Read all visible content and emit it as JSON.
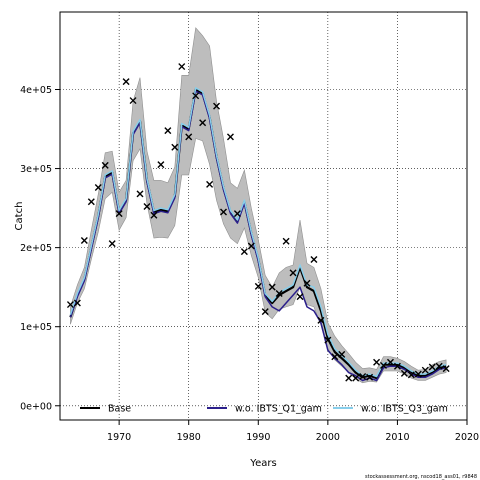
{
  "chart_data": {
    "type": "line",
    "xlabel": "Years",
    "ylabel": "Catch",
    "xlim": [
      1961.5,
      2020
    ],
    "ylim": [
      -18000,
      498000
    ],
    "x_ticks": [
      1970,
      1980,
      1990,
      2000,
      2010,
      2020
    ],
    "y_ticks": [
      0,
      100000,
      200000,
      300000,
      400000
    ],
    "y_tick_labels": [
      "0e+00",
      "1e+05",
      "2e+05",
      "3e+05",
      "4e+05"
    ],
    "grid": true,
    "legend_placement": "bottom",
    "footnote": "stockassessment.org, nscod18_ass01, r9848",
    "x": [
      1963,
      1964,
      1965,
      1966,
      1967,
      1968,
      1969,
      1970,
      1971,
      1972,
      1973,
      1974,
      1975,
      1976,
      1977,
      1978,
      1979,
      1980,
      1981,
      1982,
      1983,
      1984,
      1985,
      1986,
      1987,
      1988,
      1989,
      1990,
      1991,
      1992,
      1993,
      1994,
      1995,
      1996,
      1997,
      1998,
      1999,
      2000,
      2001,
      2002,
      2003,
      2004,
      2005,
      2006,
      2007,
      2008,
      2009,
      2010,
      2011,
      2012,
      2013,
      2014,
      2015,
      2016,
      2017
    ],
    "series": [
      {
        "name": "Base",
        "color": "#000000",
        "values": [
          112000,
          140000,
          160000,
          200000,
          240000,
          290000,
          295000,
          245000,
          260000,
          345000,
          360000,
          285000,
          245000,
          248000,
          246000,
          265000,
          355000,
          350000,
          400000,
          395000,
          365000,
          315000,
          275000,
          245000,
          233000,
          258000,
          218000,
          185000,
          140000,
          130000,
          140000,
          145000,
          150000,
          175000,
          150000,
          145000,
          120000,
          85000,
          68000,
          60000,
          52000,
          42000,
          36000,
          38000,
          35000,
          52000,
          52000,
          52000,
          48000,
          42000,
          38000,
          38000,
          42000,
          48000,
          50000
        ]
      },
      {
        "name": "w.o. IBTS_Q1_gam",
        "color": "#2b1f8c",
        "values": [
          112000,
          138000,
          158000,
          198000,
          238000,
          288000,
          293000,
          243000,
          258000,
          343000,
          358000,
          283000,
          243000,
          246000,
          244000,
          263000,
          353000,
          348000,
          398000,
          393000,
          363000,
          313000,
          273000,
          243000,
          231000,
          256000,
          216000,
          183000,
          138000,
          125000,
          120000,
          130000,
          140000,
          150000,
          125000,
          120000,
          105000,
          70000,
          60000,
          52000,
          42000,
          38000,
          32000,
          35000,
          32000,
          48000,
          50000,
          50000,
          46000,
          40000,
          36000,
          36000,
          40000,
          46000,
          48000
        ]
      },
      {
        "name": "w.o. IBTS_Q3_gam",
        "color": "#87ceeb",
        "values": [
          115000,
          142000,
          162000,
          202000,
          242000,
          292000,
          297000,
          247000,
          262000,
          347000,
          362000,
          287000,
          247000,
          250000,
          248000,
          267000,
          357000,
          352000,
          402000,
          397000,
          367000,
          317000,
          277000,
          247000,
          235000,
          260000,
          220000,
          187000,
          142000,
          132000,
          143000,
          148000,
          153000,
          178000,
          153000,
          150000,
          125000,
          90000,
          72000,
          64000,
          55000,
          45000,
          38000,
          40000,
          37000,
          54000,
          54000,
          54000,
          50000,
          44000,
          40000,
          40000,
          44000,
          50000,
          52000
        ]
      }
    ],
    "band": {
      "lower": [
        103000,
        130000,
        148000,
        185000,
        220000,
        262000,
        270000,
        222000,
        238000,
        310000,
        325000,
        255000,
        212000,
        213000,
        212000,
        228000,
        292000,
        292000,
        338000,
        335000,
        305000,
        260000,
        230000,
        212000,
        205000,
        225000,
        190000,
        162000,
        118000,
        110000,
        122000,
        125000,
        128000,
        150000,
        128000,
        125000,
        102000,
        72000,
        58000,
        50000,
        42000,
        34000,
        29000,
        31000,
        30000,
        44000,
        44000,
        44000,
        40000,
        35000,
        32000,
        32000,
        36000,
        40000,
        42000
      ],
      "upper": [
        125000,
        153000,
        175000,
        222000,
        268000,
        320000,
        322000,
        270000,
        285000,
        385000,
        415000,
        322000,
        285000,
        285000,
        282000,
        302000,
        418000,
        418000,
        478000,
        468000,
        455000,
        385000,
        338000,
        282000,
        275000,
        298000,
        250000,
        210000,
        165000,
        150000,
        168000,
        175000,
        178000,
        235000,
        180000,
        175000,
        148000,
        105000,
        88000,
        76000,
        66000,
        55000,
        47000,
        48000,
        46000,
        62000,
        62000,
        60000,
        56000,
        50000,
        45000,
        46000,
        52000,
        56000,
        58000
      ]
    },
    "observations": {
      "x": [
        1963,
        1964,
        1965,
        1966,
        1967,
        1968,
        1969,
        1970,
        1971,
        1972,
        1973,
        1974,
        1975,
        1976,
        1977,
        1978,
        1979,
        1980,
        1981,
        1982,
        1983,
        1984,
        1985,
        1986,
        1987,
        1988,
        1989,
        1990,
        1991,
        1992,
        1993,
        1994,
        1995,
        1996,
        1997,
        1998,
        1999,
        2000,
        2001,
        2002,
        2003,
        2004,
        2005,
        2006,
        2007,
        2008,
        2009,
        2010,
        2011,
        2012,
        2013,
        2014,
        2015,
        2016,
        2017
      ],
      "y": [
        128000,
        130000,
        209000,
        258000,
        276000,
        304000,
        205000,
        243000,
        410000,
        386000,
        268000,
        252000,
        241000,
        305000,
        348000,
        327000,
        429000,
        340000,
        392000,
        358000,
        280000,
        379000,
        245000,
        340000,
        243000,
        195000,
        202000,
        151000,
        119000,
        150000,
        142000,
        208000,
        168000,
        138000,
        155000,
        185000,
        108000,
        83000,
        62000,
        65000,
        35000,
        35000,
        37000,
        36000,
        55000,
        51000,
        55000,
        50000,
        41000,
        39000,
        40000,
        45000,
        49000,
        50000,
        47000
      ]
    }
  }
}
